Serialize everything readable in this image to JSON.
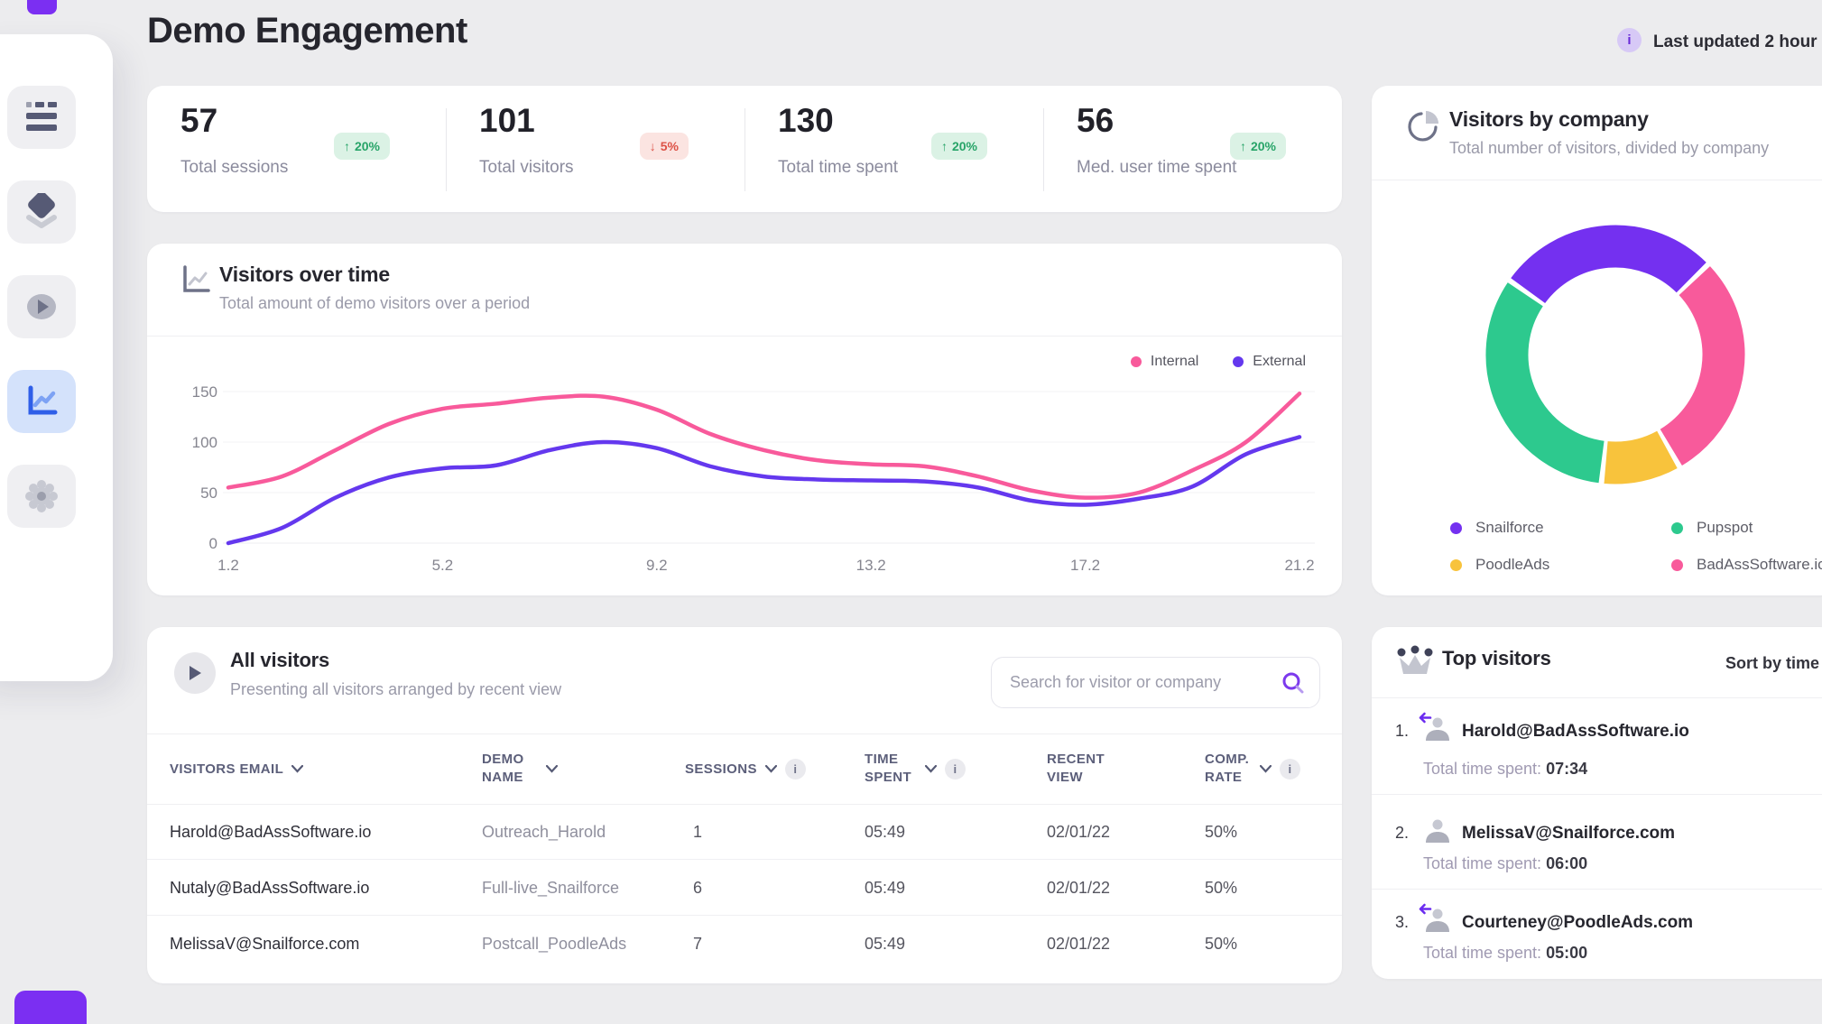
{
  "header": {
    "title": "Demo Engagement",
    "last_updated": "Last updated 2 hour"
  },
  "stats": [
    {
      "value": "57",
      "label": "Total sessions",
      "arrow": "↑",
      "change": "20%",
      "badge_class": "badge up"
    },
    {
      "value": "101",
      "label": "Total visitors",
      "arrow": "↓",
      "change": "5%",
      "badge_class": "badge down"
    },
    {
      "value": "130",
      "label": "Total time spent",
      "arrow": "↑",
      "change": "20%",
      "badge_class": "badge up"
    },
    {
      "value": "56",
      "label": "Med. user time spent",
      "arrow": "↑",
      "change": "20%",
      "badge_class": "badge up"
    }
  ],
  "visitors_over_time": {
    "title": "Visitors over time",
    "subtitle": "Total amount of demo visitors over a period"
  },
  "visitors_by_company": {
    "title": "Visitors by company",
    "subtitle": "Total number of visitors, divided by company"
  },
  "chart_data": [
    {
      "type": "line",
      "title": "Visitors over time",
      "x": [
        1.2,
        2.2,
        3.2,
        4.2,
        5.2,
        6.2,
        7.2,
        8.2,
        9.2,
        10.2,
        11.2,
        12.2,
        13.2,
        14.2,
        15.2,
        16.2,
        17.2,
        18.2,
        19.2,
        20.2,
        21.2
      ],
      "series": [
        {
          "name": "Internal",
          "color": "#F85A9B",
          "values": [
            55,
            66,
            92,
            118,
            133,
            138,
            144,
            145,
            132,
            108,
            92,
            82,
            78,
            76,
            66,
            52,
            45,
            50,
            72,
            100,
            148
          ]
        },
        {
          "name": "External",
          "color": "#6438EE",
          "values": [
            0,
            15,
            45,
            65,
            74,
            77,
            92,
            100,
            94,
            76,
            66,
            63,
            62,
            61,
            55,
            42,
            38,
            44,
            56,
            88,
            105
          ]
        }
      ],
      "yticks": [
        0,
        50,
        100,
        150
      ],
      "xticks": [
        1.2,
        5.2,
        9.2,
        13.2,
        17.2,
        21.2
      ],
      "ylim": [
        0,
        160
      ],
      "grid": true,
      "legend_position": "top-right"
    },
    {
      "type": "pie",
      "title": "Visitors by company",
      "donut": true,
      "labels": [
        "Snailforce",
        "BadAssSoftware.io",
        "PoodleAds",
        "Pupspot"
      ],
      "values": [
        28,
        29,
        10,
        33
      ],
      "colors": [
        "#7430F0",
        "#F85A9B",
        "#F8C33C",
        "#2DC98E"
      ],
      "start_angle": -55
    }
  ],
  "all_visitors": {
    "title": "All visitors",
    "subtitle": "Presenting all visitors arranged by recent view",
    "search_placeholder": "Search for visitor or company",
    "columns": [
      {
        "label": "VISITORS EMAIL"
      },
      {
        "label": "DEMO NAME"
      },
      {
        "label": "SESSIONS"
      },
      {
        "label": "TIME SPENT"
      },
      {
        "label": "RECENT VIEW"
      },
      {
        "label": "COMP. RATE"
      }
    ],
    "rows": [
      {
        "email": "Harold@BadAssSoftware.io",
        "demo": "Outreach_Harold",
        "sessions": "1",
        "time": "05:49",
        "recent": "02/01/22",
        "comp": "50%"
      },
      {
        "email": "Nutaly@BadAssSoftware.io",
        "demo": "Full-live_Snailforce",
        "sessions": "6",
        "time": "05:49",
        "recent": "02/01/22",
        "comp": "50%"
      },
      {
        "email": "MelissaV@Snailforce.com",
        "demo": "Postcall_PoodleAds",
        "sessions": "7",
        "time": "05:49",
        "recent": "02/01/22",
        "comp": "50%"
      }
    ]
  },
  "top_visitors": {
    "title": "Top visitors",
    "sort_label": "Sort by time",
    "items": [
      {
        "rank": "1.",
        "email": "Harold@BadAssSoftware.io",
        "label": "Total time spent:",
        "time": "07:34",
        "has_arrow": true
      },
      {
        "rank": "2.",
        "email": "MelissaV@Snailforce.com",
        "label": "Total time spent:",
        "time": "06:00",
        "has_arrow": false
      },
      {
        "rank": "3.",
        "email": "Courteney@PoodleAds.com",
        "label": "Total time spent:",
        "time": "05:00",
        "has_arrow": true
      }
    ]
  }
}
